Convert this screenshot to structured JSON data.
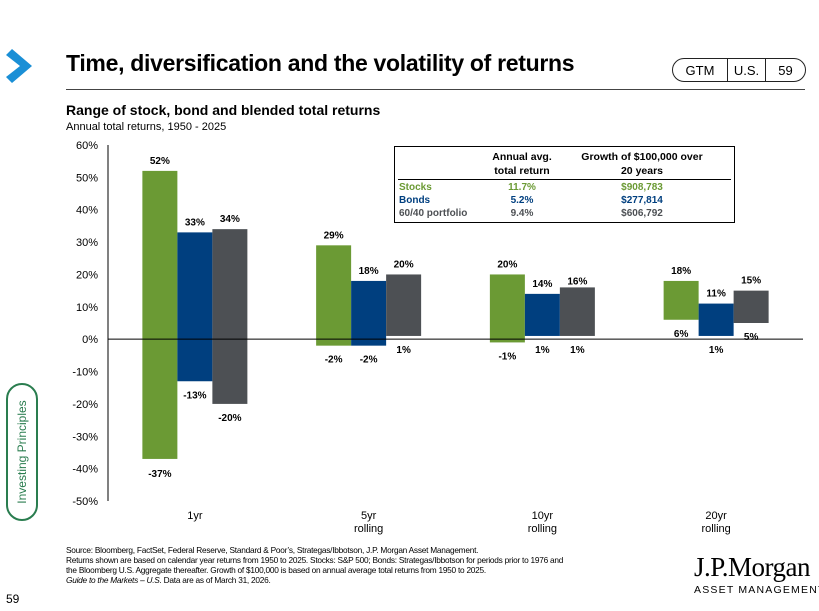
{
  "header": {
    "title": "Time, diversification and the volatility of returns",
    "tags": {
      "gtm": "GTM",
      "region": "U.S.",
      "page": "59"
    }
  },
  "sidebar": {
    "label": "Investing Principles"
  },
  "footer": {
    "page_number": "59",
    "source_line1": "Source: Bloomberg, FactSet, Federal Reserve, Standard & Poor’s, Strategas/Ibbotson, J.P. Morgan Asset Management.",
    "source_line2": "Returns shown are based on calendar year returns from 1950 to 2025. Stocks: S&P 500; Bonds: Strategas/Ibbotson for periods prior to 1976 and",
    "source_line3": "the Bloomberg U.S. Aggregate thereafter. Growth of $100,000 is based on annual average total returns from 1950 to 2025.",
    "source_line4_italic": "Guide to the Markets – U.S.",
    "source_line4_rest": " Data are as of March 31, 2026.",
    "logo": "J.P.Morgan",
    "logo_sub": "ASSET MANAGEMENT"
  },
  "colors": {
    "stocks": "#6b9a34",
    "bonds": "#003f7f",
    "blend": "#4d5054",
    "accent": "#2a7d4f",
    "chevron": "#1a8fd6"
  },
  "icons": {
    "section_marker": "chevron-right-icon"
  },
  "summary_table": {
    "header_return_line1": "Annual avg.",
    "header_return_line2": "total return",
    "header_growth_line1": "Growth of $100,000 over",
    "header_growth_line2": "20 years",
    "rows": [
      {
        "label": "Stocks",
        "return": "11.7%",
        "growth": "$908,783",
        "color": "#6b9a34"
      },
      {
        "label": "Bonds",
        "return": "5.2%",
        "growth": "$277,814",
        "color": "#003f7f"
      },
      {
        "label": "60/40 portfolio",
        "return": "9.4%",
        "growth": "$606,792",
        "color": "#4d5054"
      }
    ]
  },
  "chart_data": {
    "type": "bar",
    "subtype": "floating-range",
    "title": "Range of stock, bond and blended total returns",
    "subtitle": "Annual total returns, 1950 - 2025",
    "categories": [
      "1yr",
      "5yr\nrolling",
      "10yr\nrolling",
      "20yr\nrolling"
    ],
    "series": [
      {
        "key": "stocks",
        "color": "#6b9a34",
        "high": [
          52,
          29,
          20,
          18
        ],
        "low": [
          -37,
          -2,
          -1,
          6
        ]
      },
      {
        "key": "bonds",
        "color": "#003f7f",
        "high": [
          33,
          18,
          14,
          11
        ],
        "low": [
          -13,
          -2,
          1,
          1
        ]
      },
      {
        "key": "blend",
        "color": "#4d5054",
        "high": [
          34,
          20,
          16,
          15
        ],
        "low": [
          -20,
          1,
          1,
          5
        ]
      }
    ],
    "ylim": [
      -50,
      60
    ],
    "yticks": [
      60,
      50,
      40,
      30,
      20,
      10,
      0,
      -10,
      -20,
      -30,
      -40,
      -50
    ],
    "ytick_format": "percent",
    "grid": false
  }
}
